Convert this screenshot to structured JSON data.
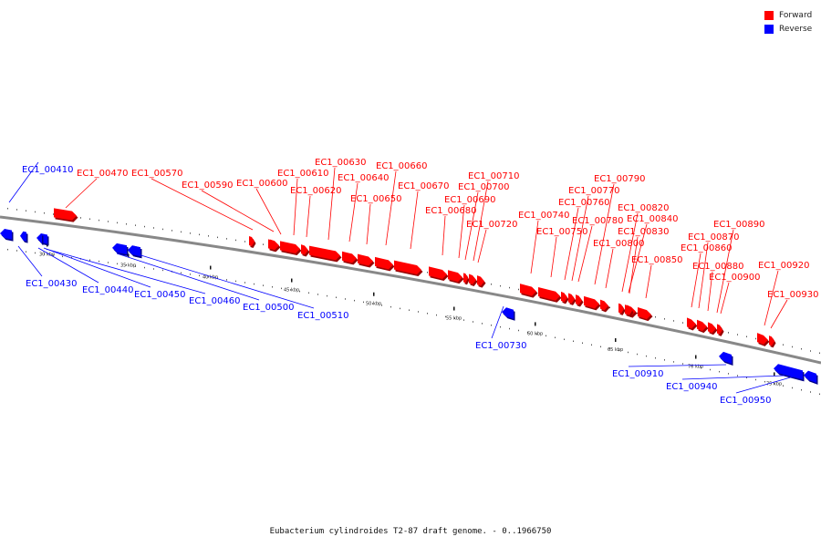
{
  "legend": {
    "forward_label": "Forward",
    "reverse_label": "Reverse",
    "forward_color": "#ff0000",
    "reverse_color": "#0000ff"
  },
  "caption": "Eubacterium cylindroides T2-87 draft genome. - 0..1966750",
  "backbone_color": "#888888",
  "scale_ticks": [
    "30 kbp",
    "35 kbp",
    "40 kbp",
    "45 kbp",
    "50 kbp",
    "55 kbp",
    "60 kbp",
    "65 kbp",
    "70 kbp",
    "75 kbp"
  ],
  "genes": [
    {
      "id": "EC1_00410",
      "strand": "reverse"
    },
    {
      "id": "EC1_00430",
      "strand": "reverse"
    },
    {
      "id": "EC1_00440",
      "strand": "reverse"
    },
    {
      "id": "EC1_00450",
      "strand": "reverse"
    },
    {
      "id": "EC1_00460",
      "strand": "reverse"
    },
    {
      "id": "EC1_00470",
      "strand": "forward"
    },
    {
      "id": "EC1_00500",
      "strand": "reverse"
    },
    {
      "id": "EC1_00510",
      "strand": "reverse"
    },
    {
      "id": "EC1_00570",
      "strand": "forward"
    },
    {
      "id": "EC1_00590",
      "strand": "forward"
    },
    {
      "id": "EC1_00600",
      "strand": "forward"
    },
    {
      "id": "EC1_00610",
      "strand": "forward"
    },
    {
      "id": "EC1_00620",
      "strand": "forward"
    },
    {
      "id": "EC1_00630",
      "strand": "forward"
    },
    {
      "id": "EC1_00640",
      "strand": "forward"
    },
    {
      "id": "EC1_00650",
      "strand": "forward"
    },
    {
      "id": "EC1_00660",
      "strand": "forward"
    },
    {
      "id": "EC1_00670",
      "strand": "forward"
    },
    {
      "id": "EC1_00680",
      "strand": "forward"
    },
    {
      "id": "EC1_00690",
      "strand": "forward"
    },
    {
      "id": "EC1_00700",
      "strand": "forward"
    },
    {
      "id": "EC1_00710",
      "strand": "forward"
    },
    {
      "id": "EC1_00720",
      "strand": "forward"
    },
    {
      "id": "EC1_00730",
      "strand": "reverse"
    },
    {
      "id": "EC1_00740",
      "strand": "forward"
    },
    {
      "id": "EC1_00750",
      "strand": "forward"
    },
    {
      "id": "EC1_00760",
      "strand": "forward"
    },
    {
      "id": "EC1_00770",
      "strand": "forward"
    },
    {
      "id": "EC1_00780",
      "strand": "forward"
    },
    {
      "id": "EC1_00790",
      "strand": "forward"
    },
    {
      "id": "EC1_00800",
      "strand": "forward"
    },
    {
      "id": "EC1_00820",
      "strand": "forward"
    },
    {
      "id": "EC1_00830",
      "strand": "forward"
    },
    {
      "id": "EC1_00840",
      "strand": "forward"
    },
    {
      "id": "EC1_00850",
      "strand": "forward"
    },
    {
      "id": "EC1_00860",
      "strand": "forward"
    },
    {
      "id": "EC1_00870",
      "strand": "forward"
    },
    {
      "id": "EC1_00880",
      "strand": "forward"
    },
    {
      "id": "EC1_00890",
      "strand": "forward"
    },
    {
      "id": "EC1_00900",
      "strand": "forward"
    },
    {
      "id": "EC1_00910",
      "strand": "reverse"
    },
    {
      "id": "EC1_00920",
      "strand": "forward"
    },
    {
      "id": "EC1_00930",
      "strand": "forward"
    },
    {
      "id": "EC1_00940",
      "strand": "reverse"
    },
    {
      "id": "EC1_00950",
      "strand": "reverse"
    }
  ]
}
